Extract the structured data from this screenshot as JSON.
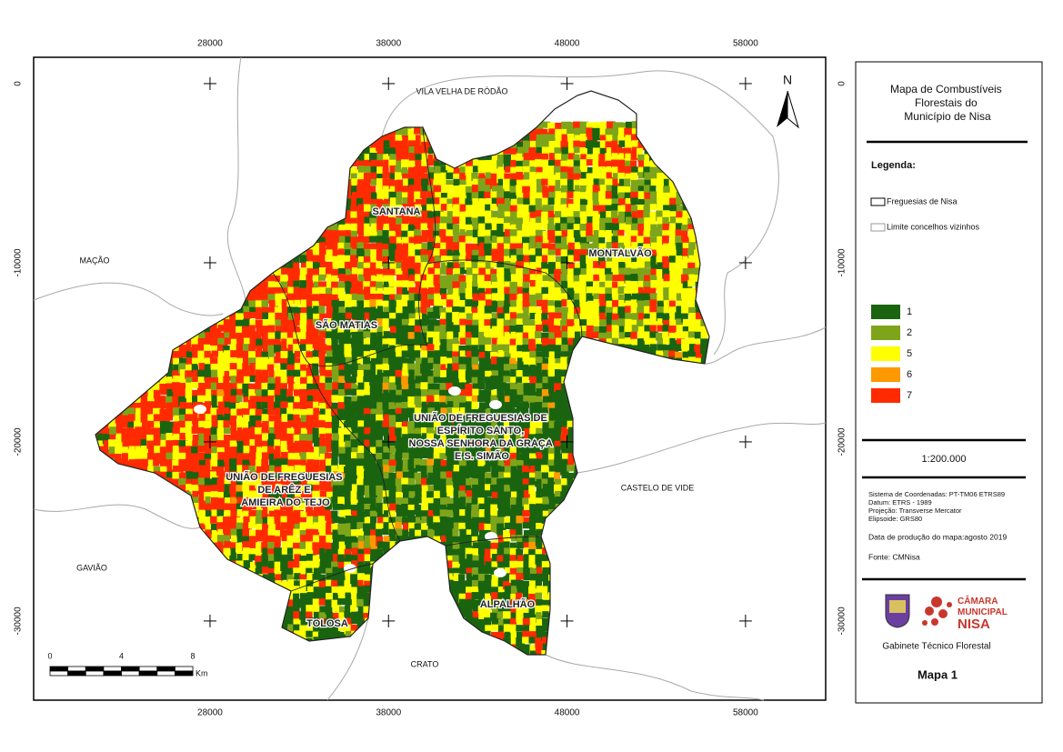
{
  "map": {
    "xlim": [
      18120,
      62490
    ],
    "ylim": [
      -34420,
      1470
    ],
    "xticks": [
      28000,
      38000,
      48000,
      58000
    ],
    "yticks": [
      0,
      -10000,
      -20000,
      -30000
    ],
    "north": "N",
    "neighbours": [
      "VILA VELHA DE RÓDÃO",
      "MAÇÃO",
      "GAVIÃO",
      "CRATO",
      "CASTELO DE VIDE"
    ],
    "parishes": [
      [
        "SANTANA"
      ],
      [
        "MONTALVÃO"
      ],
      [
        "SÃO MATIAS"
      ],
      [
        "UNIÃO DE FREGUESIAS DE",
        "ESPÍRITO SANTO,",
        "NOSSA SENHORA DA GRAÇA",
        "E S. SIMÃO"
      ],
      [
        "UNIÃO DE FREGUESIAS",
        "DE ARÊZ E",
        "AMIEIRA DO TEJO"
      ],
      [
        "TOLOSA"
      ],
      [
        "ALPALHÃO"
      ]
    ]
  },
  "scale_bar": {
    "ticks": [
      0,
      4,
      8
    ],
    "unit": "Km"
  },
  "legend_panel": {
    "title": [
      "Mapa de Combustíveis",
      "Florestais do",
      "Município de Nisa"
    ],
    "legend_title": "Legenda:",
    "boundaries": [
      "Freguesias de Nisa",
      "Limite concelhos vizinhos"
    ],
    "classes": [
      {
        "label": "1",
        "color": "#1a6410"
      },
      {
        "label": "2",
        "color": "#7ea51a"
      },
      {
        "label": "5",
        "color": "#ffff00"
      },
      {
        "label": "6",
        "color": "#ff9900"
      },
      {
        "label": "7",
        "color": "#ff2a00"
      }
    ],
    "scale": "1:200.000",
    "metadata": [
      "Sistema de Coordenadas: PT-TM06 ETRS89",
      "Datum:  ETRS - 1989",
      "Projeção: Transverse Mercator",
      "Elipsoide: GRS80"
    ],
    "date": "Data de produção do mapa:agosto 2019",
    "source": "Fonte: CMNisa",
    "logo": [
      "CÂMARA",
      "MUNICIPAL",
      "NISA"
    ],
    "department": "Gabinete Técnico Florestal",
    "map_number": "Mapa 1"
  }
}
